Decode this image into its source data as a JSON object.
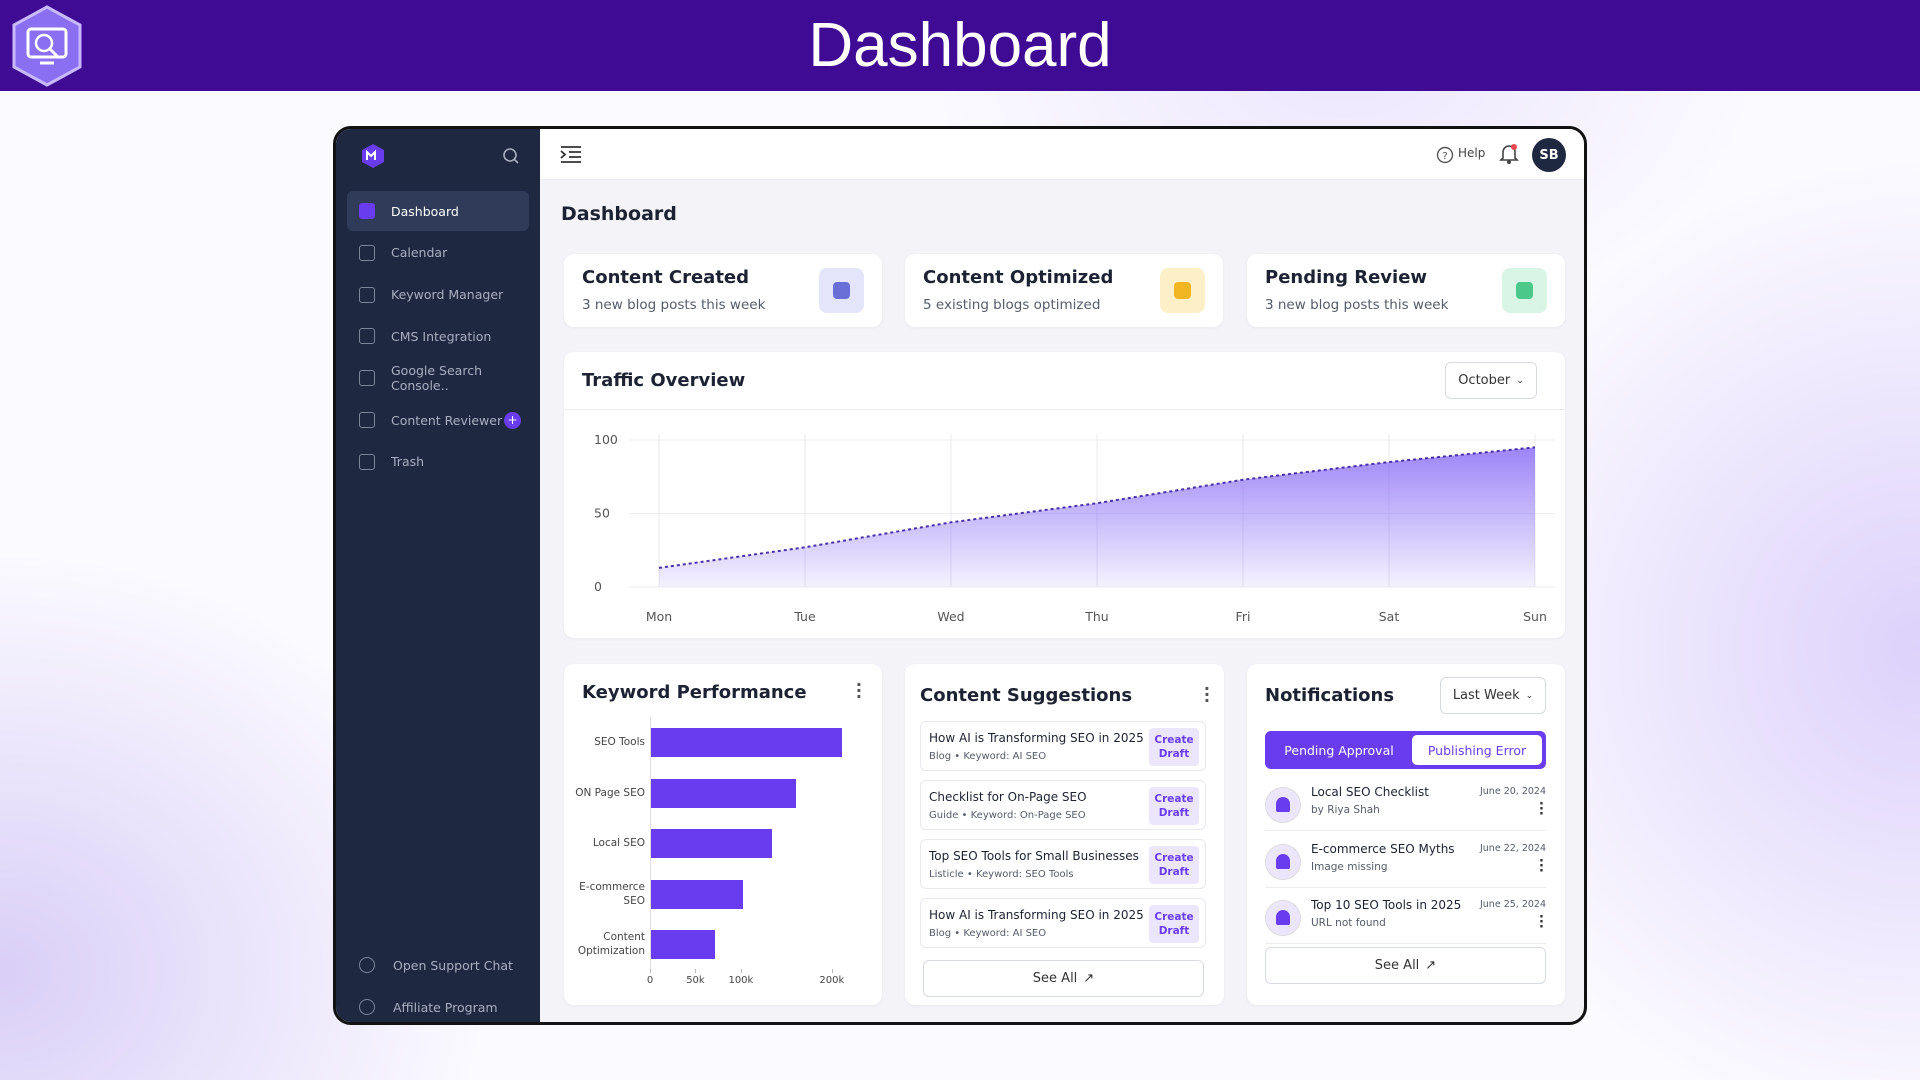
{
  "header": {
    "title": "Dashboard"
  },
  "sidebar": {
    "nav": [
      "Dashboard",
      "Calendar",
      "Keyword Manager",
      "CMS Integration",
      "Google Search Console..",
      "Content Reviewer",
      "Trash"
    ],
    "footer": [
      "Open Support Chat",
      "Affiliate Program"
    ]
  },
  "topbar": {
    "help": "Help",
    "avatar": "SB"
  },
  "page_title": "Dashboard",
  "stats": [
    {
      "title": "Content Created",
      "subtitle": "3 new blog posts this week"
    },
    {
      "title": "Content Optimized",
      "subtitle": "5 existing blogs optimized"
    },
    {
      "title": "Pending Review",
      "subtitle": "3 new blog posts this week"
    }
  ],
  "traffic": {
    "title": "Traffic Overview",
    "filter": "October",
    "chart": {
      "type": "area",
      "categories": [
        "Mon",
        "Tue",
        "Wed",
        "Thu",
        "Fri",
        "Sat",
        "Sun"
      ],
      "values": [
        13,
        27,
        44,
        57,
        73,
        85,
        95
      ],
      "color": "#7b5cf5",
      "ylim": [
        0,
        100
      ],
      "yticks": [
        0,
        50,
        100
      ],
      "grid": true
    }
  },
  "keywords": {
    "title": "Keyword Performance",
    "chart": {
      "type": "bar",
      "orientation": "horizontal",
      "categories": [
        "SEO Tools",
        "ON Page SEO",
        "Local SEO",
        "E-commerce SEO",
        "Content Optimization"
      ],
      "values": [
        211000,
        161000,
        134000,
        102000,
        72000
      ],
      "color": "#6a3cf0",
      "xlim": [
        0,
        220000
      ],
      "xticks": [
        0,
        {
          "value": 50000,
          "label": "50k"
        },
        {
          "value": 100000,
          "label": "100k"
        },
        {
          "value": 200000,
          "label": "200k"
        }
      ]
    }
  },
  "suggestions": {
    "title": "Content Suggestions",
    "items": [
      {
        "title": "How AI is Transforming SEO in 2025",
        "meta": "Blog • Keyword: AI SEO",
        "action": "Create Draft"
      },
      {
        "title": "Checklist for On-Page SEO",
        "meta": "Guide • Keyword: On-Page SEO",
        "action": "Create Draft"
      },
      {
        "title": "Top SEO Tools for Small Businesses",
        "meta": "Listicle • Keyword: SEO Tools",
        "action": "Create Draft"
      },
      {
        "title": "How AI is Transforming SEO in 2025",
        "meta": "Blog • Keyword: AI SEO",
        "action": "Create Draft"
      }
    ],
    "see_all": "See All"
  },
  "notifications": {
    "title": "Notifications",
    "filter": "Last Week",
    "tabs": [
      "Pending Approval",
      "Publishing Error"
    ],
    "items": [
      {
        "title": "Local SEO Checklist",
        "detail": "by Riya Shah",
        "date": "June 20, 2024"
      },
      {
        "title": "E-commerce SEO Myths",
        "detail": "Image missing",
        "date": "June 22, 2024"
      },
      {
        "title": "Top 10 SEO Tools in 2025",
        "detail": "URL not found",
        "date": "June 25, 2024"
      }
    ],
    "see_all": "See All"
  }
}
